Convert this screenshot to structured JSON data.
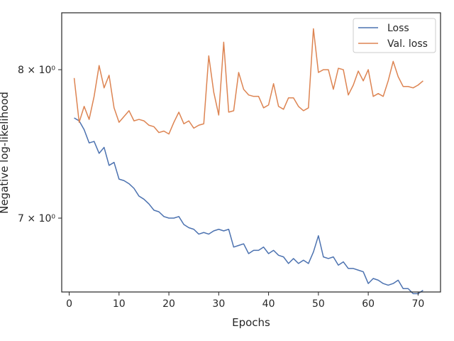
{
  "chart_data": {
    "type": "line",
    "title": "",
    "xlabel": "Epochs",
    "ylabel": "Negative log-likelihood",
    "yscale": "log",
    "xlim": [
      -1.5,
      74.5
    ],
    "ylim": [
      6.55,
      8.42
    ],
    "x_ticks": [
      {
        "value": 0,
        "label": "0"
      },
      {
        "value": 10,
        "label": "10"
      },
      {
        "value": 20,
        "label": "20"
      },
      {
        "value": 30,
        "label": "30"
      },
      {
        "value": 40,
        "label": "40"
      },
      {
        "value": 50,
        "label": "50"
      },
      {
        "value": 60,
        "label": "60"
      },
      {
        "value": 70,
        "label": "70"
      }
    ],
    "y_ticks": [
      {
        "value": 7,
        "label": "7 × 10⁰"
      },
      {
        "value": 8,
        "label": "8 × 10⁰"
      }
    ],
    "grid": false,
    "legend": {
      "position": "top-right"
    },
    "x": [
      1,
      2,
      3,
      4,
      5,
      6,
      7,
      8,
      9,
      10,
      11,
      12,
      13,
      14,
      15,
      16,
      17,
      18,
      19,
      20,
      21,
      22,
      23,
      24,
      25,
      26,
      27,
      28,
      29,
      30,
      31,
      32,
      33,
      34,
      35,
      36,
      37,
      38,
      39,
      40,
      41,
      42,
      43,
      44,
      45,
      46,
      47,
      48,
      49,
      50,
      51,
      52,
      53,
      54,
      55,
      56,
      57,
      58,
      59,
      60,
      61,
      62,
      63,
      64,
      65,
      66,
      67,
      68,
      69,
      70,
      71
    ],
    "series": [
      {
        "name": "Loss",
        "color": "#4c72b0",
        "values": [
          7.66,
          7.64,
          7.58,
          7.49,
          7.5,
          7.42,
          7.46,
          7.34,
          7.36,
          7.25,
          7.24,
          7.22,
          7.19,
          7.14,
          7.12,
          7.09,
          7.05,
          7.04,
          7.01,
          7.0,
          7.0,
          7.01,
          6.96,
          6.94,
          6.93,
          6.9,
          6.91,
          6.9,
          6.92,
          6.93,
          6.92,
          6.93,
          6.82,
          6.83,
          6.84,
          6.78,
          6.8,
          6.8,
          6.82,
          6.78,
          6.8,
          6.77,
          6.76,
          6.72,
          6.75,
          6.72,
          6.74,
          6.72,
          6.79,
          6.89,
          6.76,
          6.75,
          6.76,
          6.71,
          6.73,
          6.69,
          6.69,
          6.68,
          6.67,
          6.6,
          6.63,
          6.62,
          6.6,
          6.59,
          6.6,
          6.62,
          6.57,
          6.57,
          6.54,
          6.54,
          6.56
        ]
      },
      {
        "name": "Val. loss",
        "color": "#dd8452",
        "values": [
          7.94,
          7.63,
          7.74,
          7.65,
          7.81,
          8.03,
          7.87,
          7.96,
          7.73,
          7.63,
          7.67,
          7.71,
          7.64,
          7.65,
          7.64,
          7.61,
          7.6,
          7.56,
          7.57,
          7.55,
          7.63,
          7.7,
          7.62,
          7.64,
          7.59,
          7.61,
          7.62,
          8.1,
          7.84,
          7.68,
          8.2,
          7.7,
          7.71,
          7.98,
          7.86,
          7.82,
          7.81,
          7.81,
          7.73,
          7.75,
          7.9,
          7.74,
          7.72,
          7.8,
          7.8,
          7.74,
          7.71,
          7.73,
          8.3,
          7.98,
          8.0,
          8.0,
          7.86,
          8.01,
          8.0,
          7.82,
          7.89,
          7.99,
          7.92,
          8.0,
          7.81,
          7.83,
          7.81,
          7.92,
          8.06,
          7.95,
          7.88,
          7.88,
          7.87,
          7.89,
          7.92
        ]
      }
    ]
  }
}
